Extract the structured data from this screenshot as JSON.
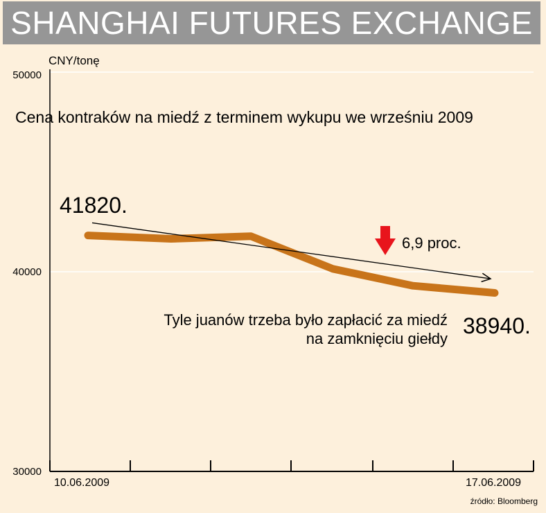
{
  "header": {
    "title": "SHANGHAI FUTURES EXCHANGE"
  },
  "chart_data": {
    "type": "line",
    "title": "Cena kontraków na miedź z terminem wykupu we wrześniu 2009",
    "ylabel": "CNY/tonę",
    "ylim": [
      30000,
      50000
    ],
    "y_ticks": [
      "50000",
      "40000",
      "30000"
    ],
    "x_tick_labels": [
      "10.06.2009",
      "17.06.2009"
    ],
    "grid": true,
    "series": [
      {
        "values": [
          41820,
          41650,
          41780,
          40150,
          39300,
          38940
        ]
      }
    ],
    "trend_line": {
      "from": 42450,
      "to": 39650
    },
    "annotations": {
      "start_value": "41820.",
      "end_value": "38940.",
      "change_label": "6,9 proc.",
      "note": "Tyle juanów trzeba było zapłacić za miedź\nna zamknięciu giełdy"
    },
    "colors": {
      "series": "#c8741a",
      "arrow": "#e8141c",
      "title_bar": "#969696",
      "background": "#fdf0dc",
      "grid": "#ffffff"
    }
  },
  "footer": {
    "source": "źródło: Bloomberg"
  }
}
